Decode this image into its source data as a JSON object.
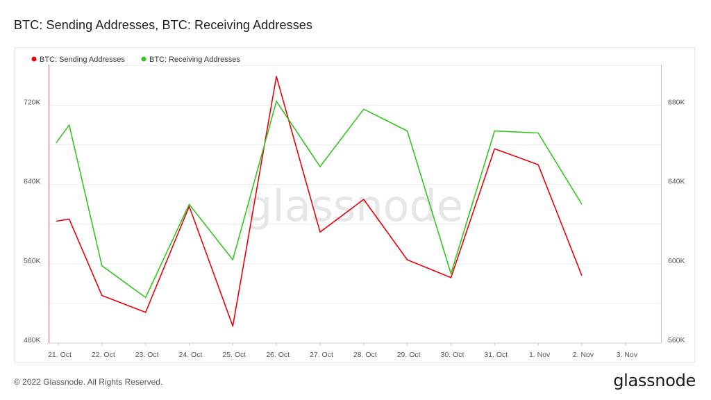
{
  "page": {
    "title": "BTC: Sending Addresses, BTC: Receiving Addresses",
    "copyright": "© 2022 Glassnode. All Rights Reserved.",
    "brand": "glassnode",
    "watermark": "glassnode"
  },
  "chart_data": {
    "type": "line",
    "x": [
      "21. Oct",
      "22. Oct",
      "23. Oct",
      "24. Oct",
      "25. Oct",
      "26. Oct",
      "27. Oct",
      "28. Oct",
      "29. Oct",
      "30. Oct",
      "31. Oct",
      "1. Nov",
      "2. Nov",
      "3. Nov"
    ],
    "left_axis": {
      "ticks": [
        480000,
        560000,
        640000,
        720000
      ],
      "tick_labels": [
        "480K",
        "560K",
        "640K",
        "720K"
      ],
      "range": [
        480000,
        760000
      ]
    },
    "right_axis": {
      "ticks": [
        560000,
        600000,
        640000,
        680000
      ],
      "tick_labels": [
        "560K",
        "600K",
        "640K",
        "680K"
      ],
      "range": [
        560000,
        700000
      ]
    },
    "series": [
      {
        "name": "BTC: Sending Addresses",
        "color": "#e8000b",
        "axis": "left",
        "points": [
          {
            "x": 20.95,
            "y": 603000
          },
          {
            "x": 21.25,
            "y": 605000
          },
          {
            "x": 22,
            "y": 528000
          },
          {
            "x": 23,
            "y": 511000
          },
          {
            "x": 24,
            "y": 618000
          },
          {
            "x": 25,
            "y": 497000
          },
          {
            "x": 26,
            "y": 749000
          },
          {
            "x": 27,
            "y": 592000
          },
          {
            "x": 28,
            "y": 625000
          },
          {
            "x": 29,
            "y": 564000
          },
          {
            "x": 30,
            "y": 546000
          },
          {
            "x": 31,
            "y": 676000
          },
          {
            "x": 32,
            "y": 660000
          },
          {
            "x": 33,
            "y": 548000
          }
        ]
      },
      {
        "name": "BTC: Receiving Addresses",
        "color": "#34c41f",
        "axis": "right",
        "points": [
          {
            "x": 20.95,
            "y": 661000
          },
          {
            "x": 21.25,
            "y": 670000
          },
          {
            "x": 22,
            "y": 599000
          },
          {
            "x": 23,
            "y": 583000
          },
          {
            "x": 24,
            "y": 630000
          },
          {
            "x": 25,
            "y": 602000
          },
          {
            "x": 26,
            "y": 682000
          },
          {
            "x": 27,
            "y": 649000
          },
          {
            "x": 28,
            "y": 678000
          },
          {
            "x": 29,
            "y": 667000
          },
          {
            "x": 30,
            "y": 595000
          },
          {
            "x": 31,
            "y": 667000
          },
          {
            "x": 32,
            "y": 666000
          },
          {
            "x": 33,
            "y": 630000
          }
        ]
      }
    ],
    "grid": true,
    "legend_position": "top-left"
  }
}
